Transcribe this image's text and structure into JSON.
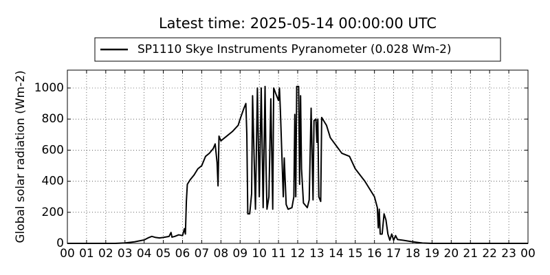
{
  "chart_data": {
    "type": "line",
    "title": "Latest time: 2025-05-14 00:00:00 UTC",
    "y_label": "Global solar radiation (Wm-2)",
    "x": [
      0,
      2.5,
      3,
      3.5,
      4,
      4.2,
      4.4,
      4.6,
      4.8,
      5,
      5.3,
      5.4,
      5.45,
      5.6,
      5.8,
      6,
      6.1,
      6.15,
      6.2,
      6.25,
      6.4,
      6.6,
      6.8,
      7,
      7.2,
      7.4,
      7.6,
      7.7,
      7.8,
      7.85,
      7.9,
      8,
      8.3,
      8.6,
      8.9,
      9,
      9.2,
      9.3,
      9.35,
      9.4,
      9.5,
      9.6,
      9.65,
      9.7,
      9.8,
      9.9,
      10,
      10.1,
      10.2,
      10.3,
      10.35,
      10.4,
      10.5,
      10.6,
      10.7,
      10.75,
      10.9,
      11,
      11.05,
      11.1,
      11.2,
      11.25,
      11.3,
      11.4,
      11.5,
      11.7,
      11.8,
      11.85,
      11.9,
      11.95,
      12.05,
      12.1,
      12.15,
      12.2,
      12.3,
      12.5,
      12.6,
      12.7,
      12.8,
      12.85,
      12.95,
      13,
      13.05,
      13.1,
      13.2,
      13.25,
      13.5,
      13.7,
      14,
      14.3,
      14.5,
      14.7,
      15,
      15.5,
      15.8,
      16,
      16.15,
      16.2,
      16.25,
      16.3,
      16.4,
      16.5,
      16.6,
      16.7,
      16.8,
      16.9,
      17,
      17.1,
      17.2,
      17.5,
      18,
      18.5,
      19,
      24
    ],
    "series": [
      {
        "name": "SP1110 Skye Instruments Pyranometer (0.028 Wm-2)",
        "color": "#000000",
        "values": [
          0,
          0,
          3,
          10,
          22,
          35,
          45,
          38,
          35,
          38,
          45,
          70,
          40,
          45,
          55,
          50,
          95,
          60,
          270,
          380,
          410,
          440,
          480,
          500,
          560,
          580,
          610,
          640,
          520,
          370,
          690,
          660,
          690,
          720,
          760,
          800,
          870,
          900,
          700,
          190,
          190,
          320,
          950,
          700,
          220,
          1000,
          300,
          1000,
          230,
          1010,
          500,
          220,
          300,
          930,
          220,
          1000,
          950,
          920,
          1000,
          850,
          480,
          300,
          550,
          250,
          220,
          230,
          300,
          830,
          300,
          1010,
          1010,
          380,
          950,
          480,
          260,
          230,
          280,
          870,
          280,
          790,
          800,
          650,
          800,
          300,
          270,
          810,
          760,
          680,
          630,
          580,
          570,
          560,
          480,
          400,
          340,
          300,
          230,
          100,
          220,
          60,
          60,
          190,
          150,
          60,
          20,
          60,
          20,
          50,
          25,
          20,
          10,
          2,
          0,
          0
        ]
      }
    ],
    "xlim": [
      0,
      24
    ],
    "xticks": [
      {
        "value": 0,
        "label": "00"
      },
      {
        "value": 1,
        "label": "01"
      },
      {
        "value": 2,
        "label": "02"
      },
      {
        "value": 3,
        "label": "03"
      },
      {
        "value": 4,
        "label": "04"
      },
      {
        "value": 5,
        "label": "05"
      },
      {
        "value": 6,
        "label": "06"
      },
      {
        "value": 7,
        "label": "07"
      },
      {
        "value": 8,
        "label": "08"
      },
      {
        "value": 9,
        "label": "09"
      },
      10,
      11,
      12,
      13,
      14,
      15,
      16,
      17,
      18,
      19,
      20,
      21,
      22,
      23,
      {
        "value": 24,
        "label": "00"
      }
    ],
    "ylim": [
      0,
      1115
    ],
    "yticks": [
      0,
      200,
      400,
      600,
      800,
      1000
    ],
    "grid": true,
    "legend": "top"
  }
}
